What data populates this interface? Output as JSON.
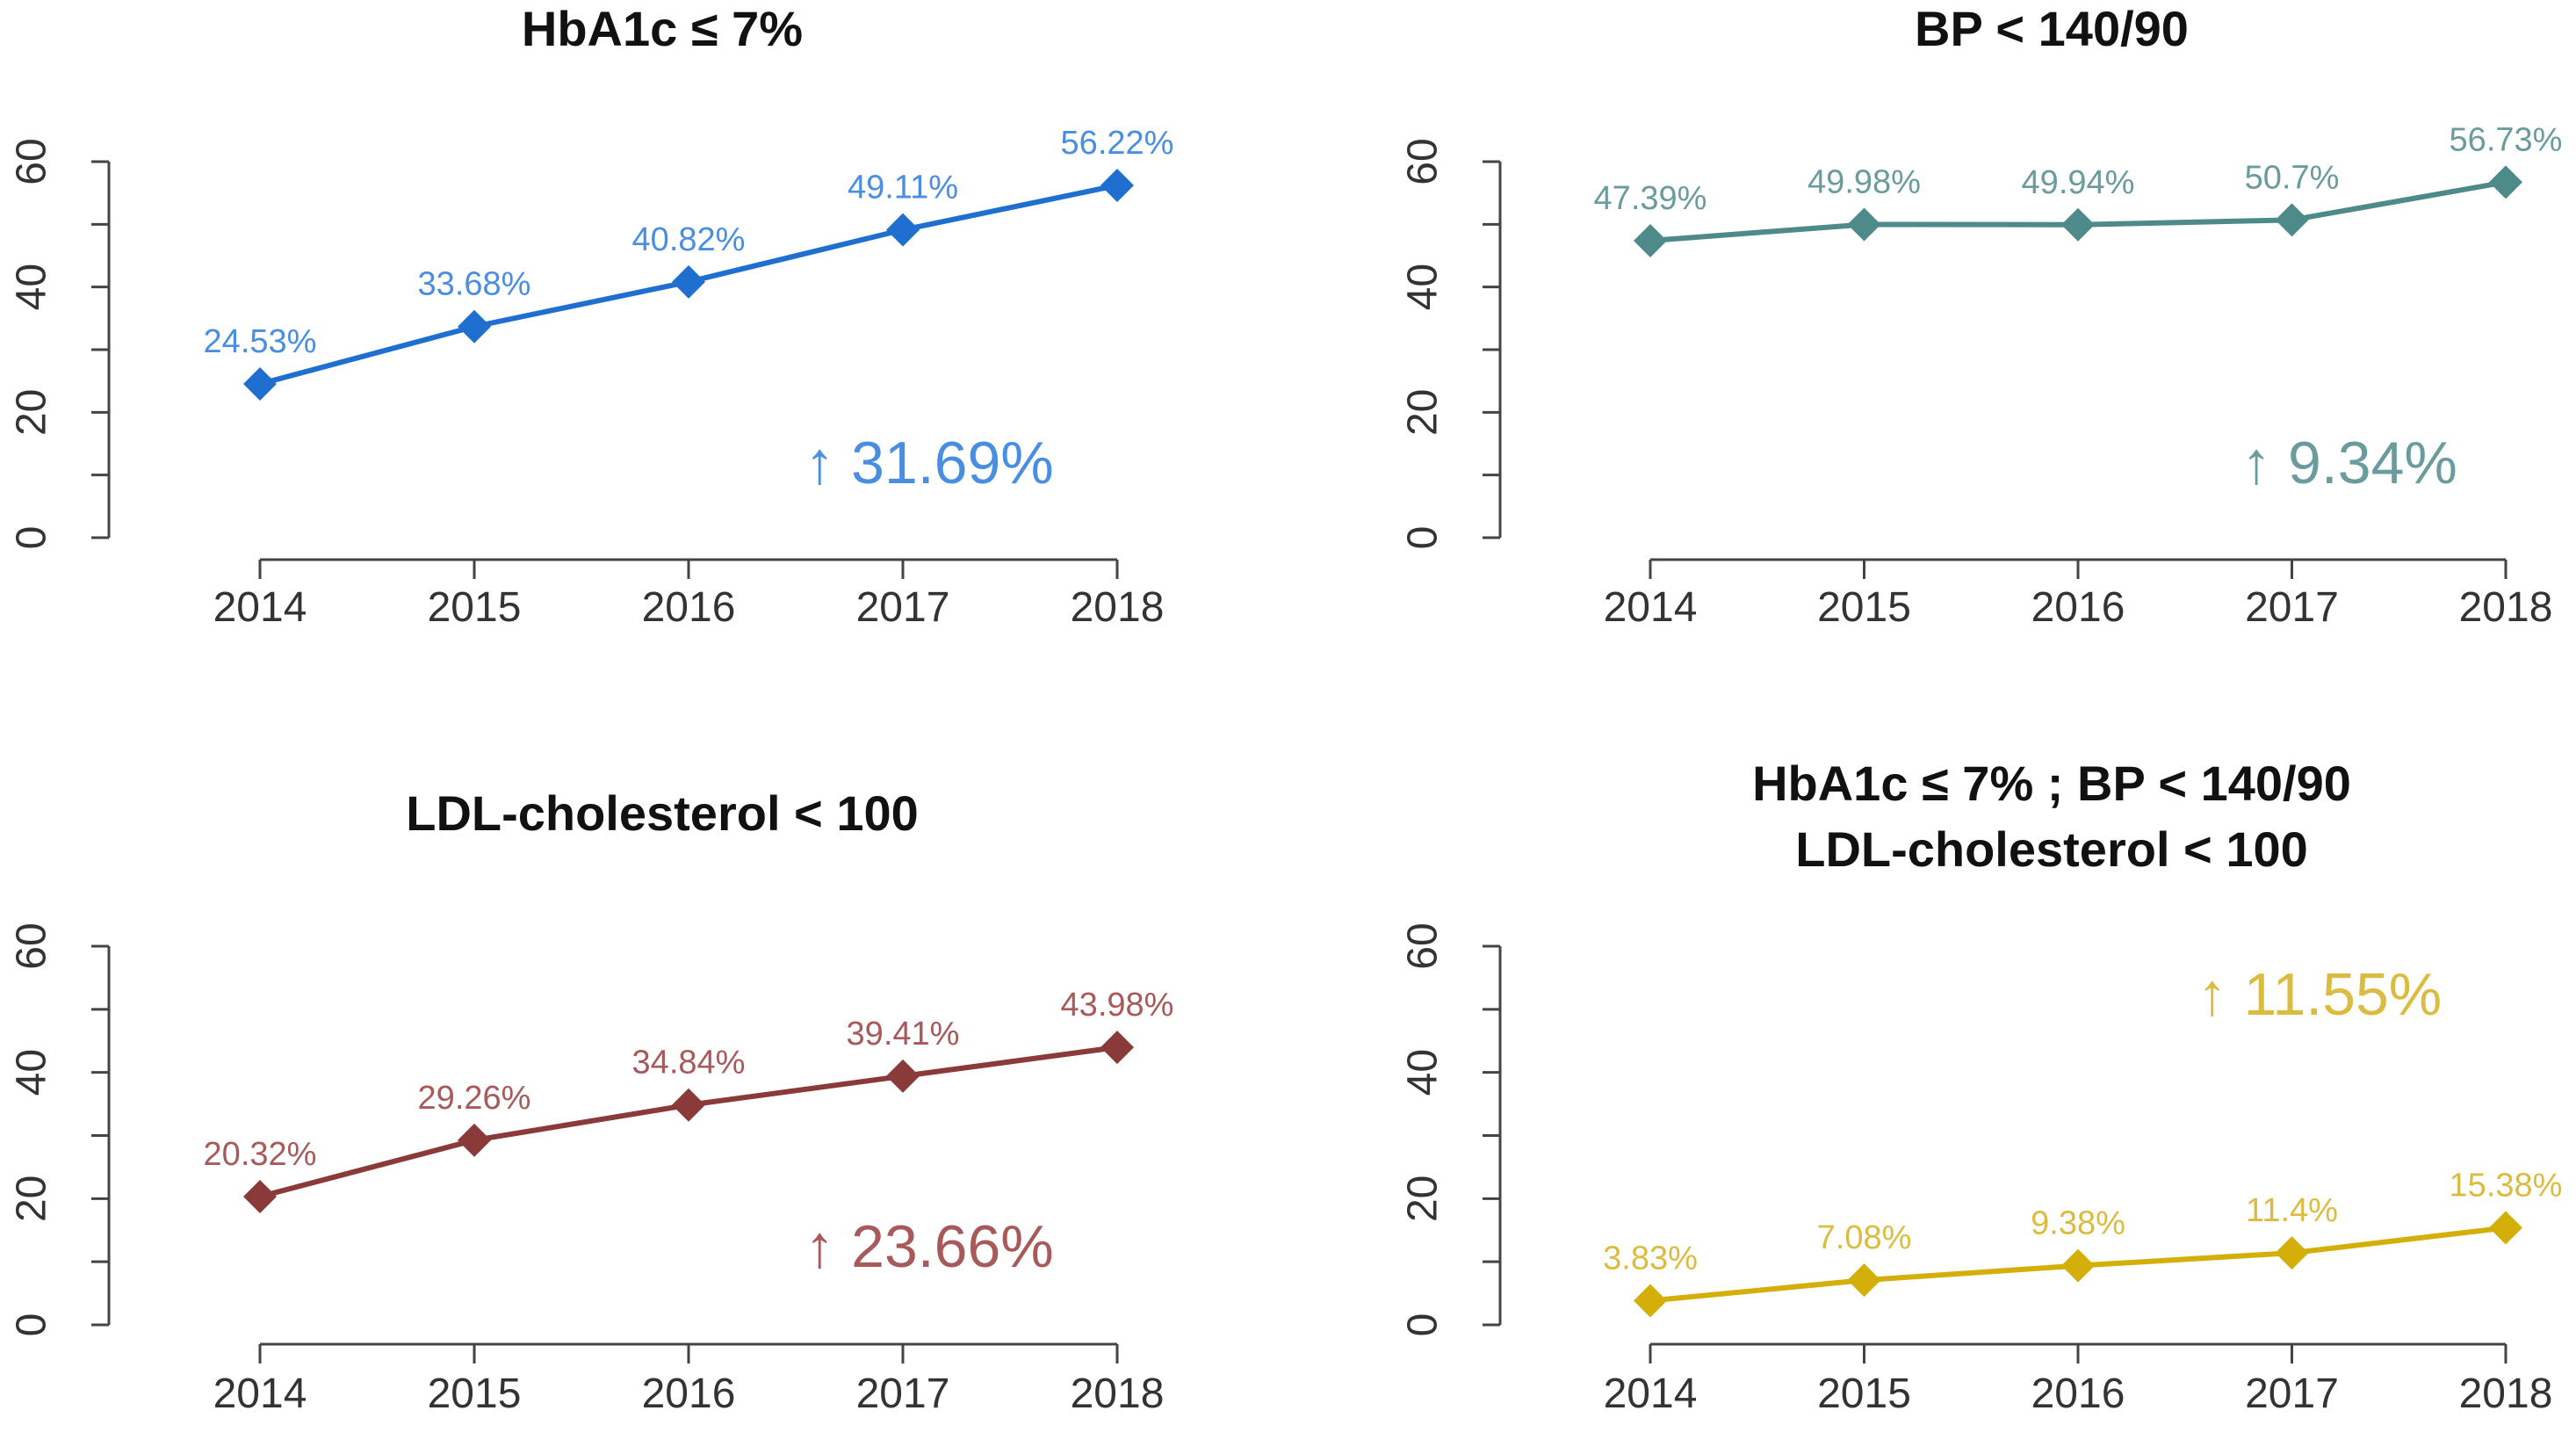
{
  "chart_data": [
    {
      "type": "line",
      "title": "HbA1c ≤ 7%",
      "title_lines": [
        "HbA1c ≤ 7%"
      ],
      "color": "#1f6fd0",
      "label_color": "#4a8ee0",
      "categories": [
        "2014",
        "2015",
        "2016",
        "2017",
        "2018"
      ],
      "values": [
        24.53,
        33.68,
        40.82,
        49.11,
        56.22
      ],
      "point_labels": [
        "24.53%",
        "33.68%",
        "40.82%",
        "49.11%",
        "56.22%"
      ],
      "annotation": "↑ 31.69%",
      "annotation_value": 31.69,
      "yticks": [
        "0",
        "20",
        "40",
        "60"
      ],
      "ylim": [
        0,
        60
      ],
      "xlabel": "",
      "ylabel": ""
    },
    {
      "type": "line",
      "title": "BP < 140/90",
      "title_lines": [
        "BP < 140/90"
      ],
      "color": "#4f8a8b",
      "label_color": "#6a9c9d",
      "categories": [
        "2014",
        "2015",
        "2016",
        "2017",
        "2018"
      ],
      "values": [
        47.39,
        49.98,
        49.94,
        50.7,
        56.73
      ],
      "point_labels": [
        "47.39%",
        "49.98%",
        "49.94%",
        "50.7%",
        "56.73%"
      ],
      "annotation": "↑ 9.34%",
      "annotation_value": 9.34,
      "yticks": [
        "0",
        "20",
        "40",
        "60"
      ],
      "ylim": [
        0,
        60
      ],
      "xlabel": "",
      "ylabel": ""
    },
    {
      "type": "line",
      "title": "LDL-cholesterol < 100",
      "title_lines": [
        "LDL-cholesterol < 100"
      ],
      "color": "#8b3a3a",
      "label_color": "#a85a5a",
      "categories": [
        "2014",
        "2015",
        "2016",
        "2017",
        "2018"
      ],
      "values": [
        20.32,
        29.26,
        34.84,
        39.41,
        43.98
      ],
      "point_labels": [
        "20.32%",
        "29.26%",
        "34.84%",
        "39.41%",
        "43.98%"
      ],
      "annotation": "↑ 23.66%",
      "annotation_value": 23.66,
      "yticks": [
        "0",
        "20",
        "40",
        "60"
      ],
      "ylim": [
        0,
        60
      ],
      "xlabel": "",
      "ylabel": ""
    },
    {
      "type": "line",
      "title": "HbA1c ≤ 7%  ;  BP < 140/90 LDL-cholesterol < 100",
      "title_lines": [
        "HbA1c ≤ 7%  ;  BP < 140/90",
        "LDL-cholesterol < 100"
      ],
      "color": "#d4af0a",
      "label_color": "#dcbc40",
      "categories": [
        "2014",
        "2015",
        "2016",
        "2017",
        "2018"
      ],
      "values": [
        3.83,
        7.08,
        9.38,
        11.4,
        15.38
      ],
      "point_labels": [
        "3.83%",
        "7.08%",
        "9.38%",
        "11.4%",
        "15.38%"
      ],
      "annotation": "↑ 11.55%",
      "annotation_value": 11.55,
      "yticks": [
        "0",
        "20",
        "40",
        "60"
      ],
      "ylim": [
        0,
        60
      ],
      "xlabel": "",
      "ylabel": ""
    }
  ]
}
